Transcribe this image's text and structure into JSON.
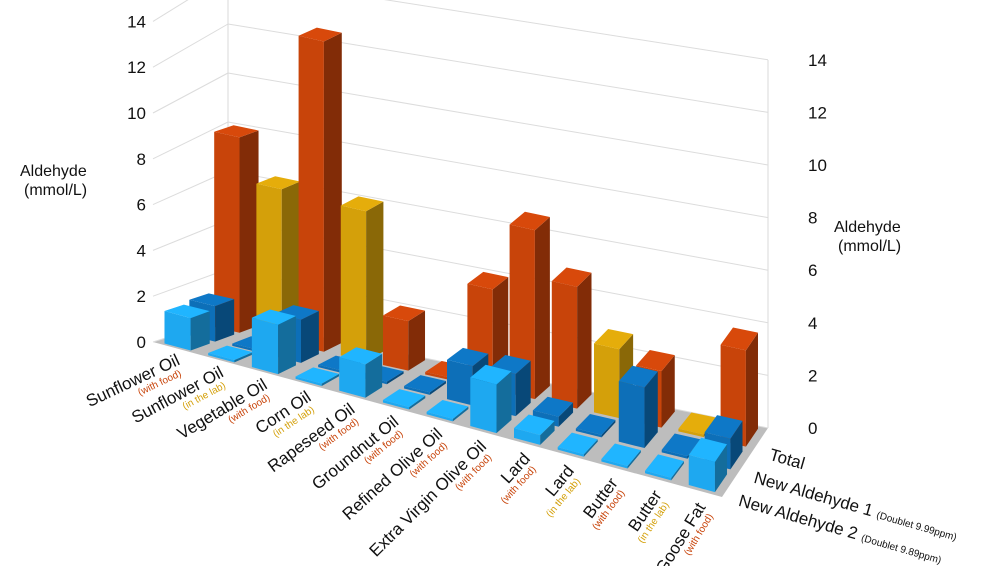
{
  "chart_data": {
    "type": "bar",
    "subtype": "3d-bar",
    "categories": [
      {
        "name": "Sunflower Oil",
        "sub": "(with food)"
      },
      {
        "name": "Sunflower Oil",
        "sub": "(in the lab)"
      },
      {
        "name": "Vegetable Oil",
        "sub": "(with food)"
      },
      {
        "name": "Corn Oil",
        "sub": "(in the lab)"
      },
      {
        "name": "Rapeseed Oil",
        "sub": "(with food)"
      },
      {
        "name": "Groundnut Oil",
        "sub": "(with food)"
      },
      {
        "name": "Refined Olive Oil",
        "sub": "(with food)"
      },
      {
        "name": "Extra Virgin Olive Oil",
        "sub": "(with food)"
      },
      {
        "name": "Lard",
        "sub": "(with food)"
      },
      {
        "name": "Lard",
        "sub": "(in the lab)"
      },
      {
        "name": "Butter",
        "sub": "(with food)"
      },
      {
        "name": "Butter",
        "sub": "(in the lab)"
      },
      {
        "name": "Goose Fat",
        "sub": "(with food)"
      }
    ],
    "series": [
      {
        "name": "Total",
        "sub": "",
        "values": [
          8.1,
          6.3,
          12.7,
          6.1,
          2.0,
          0.1,
          4.0,
          6.7,
          4.8,
          2.7,
          2.2,
          0.1,
          3.7
        ]
      },
      {
        "name": "New Aldehyde 1",
        "sub": "(Doublet 9.99ppm)",
        "values": [
          1.5,
          0.1,
          1.8,
          0.1,
          0.1,
          0.1,
          1.6,
          1.7,
          0.4,
          0.1,
          2.4,
          0.1,
          1.2
        ]
      },
      {
        "name": "New Aldehyde 2",
        "sub": "(Doublet 9.89ppm)",
        "values": [
          1.4,
          0.1,
          2.1,
          0.1,
          1.4,
          0.1,
          0.1,
          2.0,
          0.4,
          0.1,
          0.1,
          0.1,
          1.2
        ]
      }
    ],
    "ylabel_left": [
      "Aldehyde",
      "(mmol/L)"
    ],
    "ylabel_right": [
      "Aldehyde",
      "(mmol/L)"
    ],
    "yticks": [
      "0",
      "2",
      "4",
      "6",
      "8",
      "10",
      "12",
      "14"
    ],
    "ylim": [
      0,
      14
    ],
    "grid": true,
    "colors": {
      "with_food": "#c8440a",
      "in_the_lab": "#d4a00a",
      "aldehyde1": "#0d6fb8",
      "aldehyde2": "#1ea8f0",
      "floor": "#bdbdbd"
    }
  }
}
